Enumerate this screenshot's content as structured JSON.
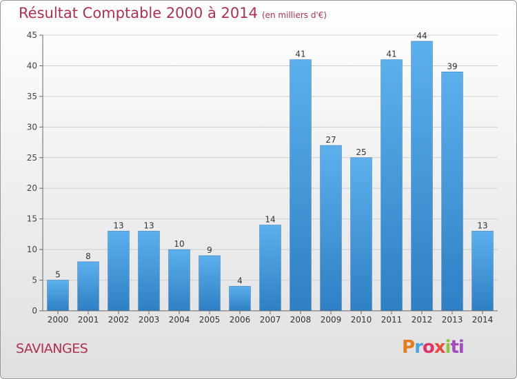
{
  "header": {
    "title": "Résultat Comptable 2000 à 2014",
    "unit": "(en milliers d'€)"
  },
  "footer": {
    "commune": "SAVIANGES",
    "logo_letters": [
      "P",
      "r",
      "o",
      "x",
      "i",
      "ti"
    ]
  },
  "colors": {
    "bar": "#3d8fd6",
    "bar_light": "#5aaee8",
    "title": "#b0304f"
  },
  "chart_data": {
    "type": "bar",
    "title": "Résultat Comptable 2000 à 2014",
    "categories": [
      "2000",
      "2001",
      "2002",
      "2003",
      "2004",
      "2005",
      "2006",
      "2007",
      "2008",
      "2009",
      "2010",
      "2011",
      "2012",
      "2013",
      "2014"
    ],
    "values": [
      5,
      8,
      13,
      13,
      10,
      9,
      4,
      14,
      41,
      27,
      25,
      41,
      44,
      39,
      13
    ],
    "ylim": [
      0,
      45
    ],
    "yticks": [
      0,
      5,
      10,
      15,
      20,
      25,
      30,
      35,
      40,
      45
    ],
    "grid": true
  }
}
